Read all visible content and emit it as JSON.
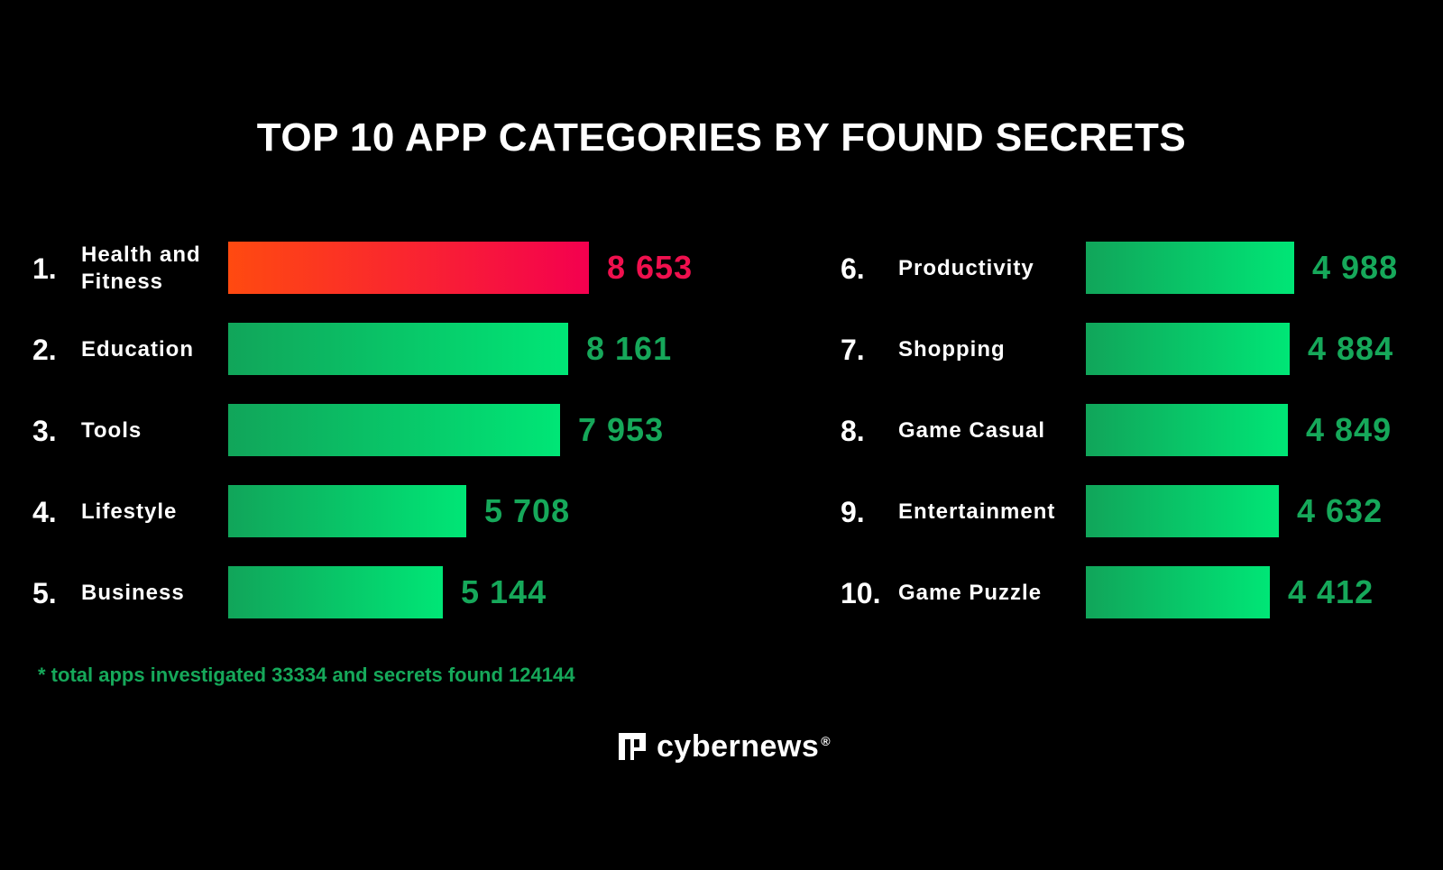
{
  "chart_data": {
    "type": "bar",
    "title": "TOP 10 APP CATEGORIES BY FOUND SECRETS",
    "orientation": "horizontal",
    "categories": [
      "Health and\nFitness",
      "Education",
      "Tools",
      "Lifestyle",
      "Business",
      "Productivity",
      "Shopping",
      "Game Casual",
      "Entertainment",
      "Game Puzzle"
    ],
    "ranks": [
      "1.",
      "2.",
      "3.",
      "4.",
      "5.",
      "6.",
      "7.",
      "8.",
      "9.",
      "10."
    ],
    "values": [
      8653,
      8161,
      7953,
      5708,
      5144,
      4988,
      4884,
      4849,
      4632,
      4412
    ],
    "value_labels": [
      "8 653",
      "8 161",
      "7 953",
      "5 708",
      "5 144",
      "4 988",
      "4 884",
      "4 849",
      "4 632",
      "4 412"
    ],
    "colors": {
      "highlight": "#f0104e",
      "highlight_start": "#ff4a10",
      "bar": "#00e676",
      "bar_start": "#11a55a",
      "value_text": "#16a85a"
    },
    "legend": "none",
    "grid": false
  },
  "footnote": "* total apps investigated 33334 and secrets found 124144",
  "brand": {
    "name": "cybernews",
    "mark": "®",
    "icon": "cybernews-logo-icon"
  }
}
